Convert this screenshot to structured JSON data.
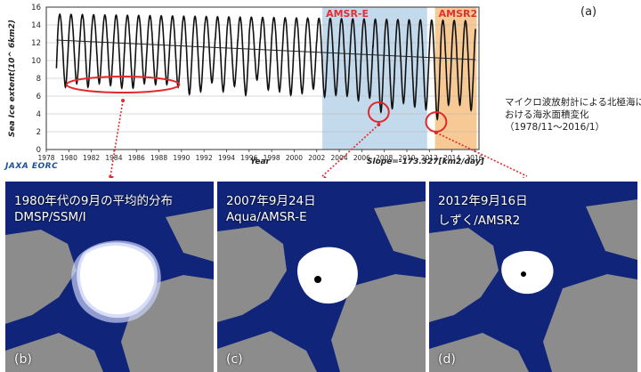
{
  "panel_tag": "(a)",
  "logo_text": "JAXA EORC",
  "caption": {
    "line1": "マイクロ波放射計による北極海に",
    "line2": "おける海氷面積変化",
    "line3": "（1978/11～2016/1）"
  },
  "chart_data": {
    "type": "line",
    "title": "",
    "xlabel": "Year",
    "ylabel": "Sea Ice extent(10^ 6km2)",
    "xlim": [
      1978,
      2016.4
    ],
    "ylim": [
      0,
      16
    ],
    "x_ticks": [
      "1978",
      "1980",
      "1982",
      "1984",
      "1986",
      "1988",
      "1990",
      "1992",
      "1994",
      "1996",
      "1998",
      "2000",
      "2002",
      "2004",
      "2006",
      "2008",
      "2010",
      "2012",
      "2014",
      "2016"
    ],
    "y_ticks": [
      "0",
      "2",
      "4",
      "6",
      "8",
      "10",
      "12",
      "14",
      "16"
    ],
    "slope_label": "Slope=-173.327[km2/day]",
    "trend": {
      "x": [
        1978.9,
        2016.1
      ],
      "y": [
        12.3,
        10.1
      ]
    },
    "seasonal_cycle": {
      "start": 1978.9,
      "end": 2016.1,
      "note_max": "annual maxima ~14-15.5",
      "note_min": "annual minima ~7 falling to ~3.4 in 2012"
    },
    "annual_minima": [
      {
        "year": 1979,
        "min": 7.0
      },
      {
        "year": 1980,
        "min": 7.4
      },
      {
        "year": 1981,
        "min": 7.0
      },
      {
        "year": 1982,
        "min": 7.4
      },
      {
        "year": 1983,
        "min": 7.2
      },
      {
        "year": 1984,
        "min": 6.9
      },
      {
        "year": 1985,
        "min": 6.9
      },
      {
        "year": 1986,
        "min": 7.4
      },
      {
        "year": 1987,
        "min": 7.3
      },
      {
        "year": 1988,
        "min": 7.3
      },
      {
        "year": 1989,
        "min": 7.0
      },
      {
        "year": 1990,
        "min": 6.2
      },
      {
        "year": 1991,
        "min": 6.5
      },
      {
        "year": 1992,
        "min": 7.5
      },
      {
        "year": 1993,
        "min": 6.5
      },
      {
        "year": 1994,
        "min": 7.1
      },
      {
        "year": 1995,
        "min": 6.1
      },
      {
        "year": 1996,
        "min": 7.8
      },
      {
        "year": 1997,
        "min": 6.7
      },
      {
        "year": 1998,
        "min": 6.5
      },
      {
        "year": 1999,
        "min": 6.1
      },
      {
        "year": 2000,
        "min": 6.3
      },
      {
        "year": 2001,
        "min": 6.8
      },
      {
        "year": 2002,
        "min": 5.9
      },
      {
        "year": 2003,
        "min": 6.1
      },
      {
        "year": 2004,
        "min": 6.0
      },
      {
        "year": 2005,
        "min": 5.5
      },
      {
        "year": 2006,
        "min": 5.8
      },
      {
        "year": 2007,
        "min": 4.2
      },
      {
        "year": 2008,
        "min": 4.6
      },
      {
        "year": 2009,
        "min": 5.2
      },
      {
        "year": 2010,
        "min": 4.8
      },
      {
        "year": 2011,
        "min": 4.5
      },
      {
        "year": 2012,
        "min": 3.4
      },
      {
        "year": 2013,
        "min": 5.0
      },
      {
        "year": 2014,
        "min": 5.0
      },
      {
        "year": 2015,
        "min": 4.4
      }
    ],
    "regions": [
      {
        "label": "AMSR-E",
        "from": 2002.5,
        "to": 2011.8,
        "color": "#bcd5ea",
        "label_color": "#e03030"
      },
      {
        "label": "AMSR2",
        "from": 2012.5,
        "to": 2016.2,
        "color": "#f6c48a",
        "label_color": "#e03030"
      }
    ],
    "highlights": [
      {
        "name": "1980s-september",
        "x_center": 1984.8,
        "y_center": 7.3,
        "rx_years": 5.0,
        "ry_units": 0.9
      },
      {
        "name": "2007-minimum",
        "x_center": 2007.5,
        "y_center": 4.2,
        "rx_years": 0.9,
        "ry_units": 1.1
      },
      {
        "name": "2012-minimum",
        "x_center": 2012.6,
        "y_center": 3.1,
        "rx_years": 0.9,
        "ry_units": 1.1
      }
    ]
  },
  "maps": [
    {
      "line1": "1980年代の9月の平均的分布",
      "line2": "DMSP/SSM/I",
      "letter": "(b)"
    },
    {
      "line1": "2007年9月24日",
      "line2": "Aqua/AMSR-E",
      "letter": "(c)"
    },
    {
      "line1": "2012年9月16日",
      "line2": "しずく/AMSR2",
      "letter": "(d)"
    }
  ],
  "colors": {
    "ocean": "#10247a",
    "land": "#8c8c8c",
    "ice": "#ffffff",
    "highlight": "#e02a2a",
    "series": "#111111"
  }
}
